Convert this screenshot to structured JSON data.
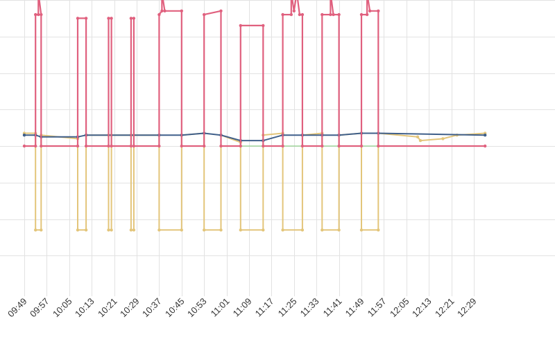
{
  "chart_data": {
    "type": "line",
    "title": "",
    "xlabel": "",
    "ylabel": "",
    "grid": true,
    "x_tick_labels": [
      "09:49",
      "09:57",
      "10:05",
      "10:13",
      "10:21",
      "10:29",
      "10:37",
      "10:45",
      "10:53",
      "11:01",
      "11:09",
      "11:17",
      "11:25",
      "11:33",
      "11:41",
      "11:49",
      "11:57",
      "12:05",
      "12:13",
      "12:21",
      "12:29"
    ],
    "ylim": [
      -4,
      4
    ],
    "x_start": "09:49",
    "x_end": "12:33",
    "colors": {
      "pink": "#e0607e",
      "gold": "#e3c57a",
      "navy": "#3f5f8a",
      "green": "#8fcf8a"
    },
    "series": [
      {
        "color": "pink",
        "values": [
          [
            "09:49",
            0
          ],
          [
            "09:53",
            0
          ],
          [
            "09:53",
            3.6
          ],
          [
            "09:54",
            3.6
          ],
          [
            "09:54",
            4.2
          ],
          [
            "09:55",
            3.6
          ],
          [
            "09:55",
            0
          ],
          [
            "10:08",
            0
          ],
          [
            "10:08",
            3.5
          ],
          [
            "10:11",
            3.5
          ],
          [
            "10:11",
            0
          ],
          [
            "10:19",
            0
          ],
          [
            "10:19",
            3.5
          ],
          [
            "10:20",
            3.5
          ],
          [
            "10:20",
            0
          ],
          [
            "10:27",
            0
          ],
          [
            "10:27",
            3.5
          ],
          [
            "10:28",
            3.5
          ],
          [
            "10:28",
            0
          ],
          [
            "10:37",
            0
          ],
          [
            "10:37",
            3.6
          ],
          [
            "10:38",
            3.7
          ],
          [
            "10:38",
            4.2
          ],
          [
            "10:39",
            3.7
          ],
          [
            "10:45",
            3.7
          ],
          [
            "10:45",
            0
          ],
          [
            "10:53",
            0
          ],
          [
            "10:53",
            3.6
          ],
          [
            "10:59",
            3.7
          ],
          [
            "10:59",
            0
          ],
          [
            "11:06",
            0
          ],
          [
            "11:06",
            3.3
          ],
          [
            "11:14",
            3.3
          ],
          [
            "11:14",
            0
          ],
          [
            "11:21",
            0
          ],
          [
            "11:21",
            3.6
          ],
          [
            "11:24",
            3.6
          ],
          [
            "11:24",
            4.2
          ],
          [
            "11:25",
            3.7
          ],
          [
            "11:26",
            4.2
          ],
          [
            "11:27",
            3.6
          ],
          [
            "11:28",
            3.6
          ],
          [
            "11:28",
            0
          ],
          [
            "11:35",
            0
          ],
          [
            "11:35",
            3.6
          ],
          [
            "11:38",
            3.6
          ],
          [
            "11:38",
            4.2
          ],
          [
            "11:39",
            3.6
          ],
          [
            "11:41",
            3.6
          ],
          [
            "11:41",
            0
          ],
          [
            "11:49",
            0
          ],
          [
            "11:49",
            3.6
          ],
          [
            "11:51",
            3.6
          ],
          [
            "11:51",
            4.2
          ],
          [
            "11:52",
            3.7
          ],
          [
            "11:55",
            3.7
          ],
          [
            "11:55",
            0
          ],
          [
            "12:33",
            0
          ]
        ]
      },
      {
        "color": "gold",
        "values": [
          [
            "09:49",
            0.35
          ],
          [
            "09:53",
            0.35
          ],
          [
            "09:53",
            -2.3
          ],
          [
            "09:55",
            -2.3
          ],
          [
            "09:55",
            0.3
          ],
          [
            "10:08",
            0.2
          ],
          [
            "10:08",
            -2.3
          ],
          [
            "10:11",
            -2.3
          ],
          [
            "10:11",
            0.3
          ],
          [
            "10:19",
            0.3
          ],
          [
            "10:19",
            -2.3
          ],
          [
            "10:20",
            -2.3
          ],
          [
            "10:20",
            0.3
          ],
          [
            "10:27",
            0.3
          ],
          [
            "10:27",
            -2.3
          ],
          [
            "10:28",
            -2.3
          ],
          [
            "10:28",
            0.3
          ],
          [
            "10:37",
            0.3
          ],
          [
            "10:37",
            -2.3
          ],
          [
            "10:45",
            -2.3
          ],
          [
            "10:45",
            0.3
          ],
          [
            "10:53",
            0.35
          ],
          [
            "10:53",
            -2.3
          ],
          [
            "10:59",
            -2.3
          ],
          [
            "10:59",
            0.3
          ],
          [
            "11:06",
            0.1
          ],
          [
            "11:06",
            -2.3
          ],
          [
            "11:14",
            -2.3
          ],
          [
            "11:14",
            0.3
          ],
          [
            "11:21",
            0.35
          ],
          [
            "11:21",
            -2.3
          ],
          [
            "11:28",
            -2.3
          ],
          [
            "11:28",
            0.3
          ],
          [
            "11:35",
            0.35
          ],
          [
            "11:35",
            -2.3
          ],
          [
            "11:41",
            -2.3
          ],
          [
            "11:41",
            0.3
          ],
          [
            "11:49",
            0.35
          ],
          [
            "11:49",
            -2.3
          ],
          [
            "11:55",
            -2.3
          ],
          [
            "11:55",
            0.35
          ],
          [
            "12:09",
            0.25
          ],
          [
            "12:10",
            0.15
          ],
          [
            "12:18",
            0.2
          ],
          [
            "12:23",
            0.3
          ],
          [
            "12:33",
            0.35
          ]
        ]
      },
      {
        "color": "navy",
        "values": [
          [
            "09:49",
            0.3
          ],
          [
            "09:53",
            0.3
          ],
          [
            "09:55",
            0.25
          ],
          [
            "10:08",
            0.25
          ],
          [
            "10:11",
            0.3
          ],
          [
            "10:37",
            0.3
          ],
          [
            "10:45",
            0.3
          ],
          [
            "10:53",
            0.35
          ],
          [
            "10:59",
            0.3
          ],
          [
            "11:06",
            0.15
          ],
          [
            "11:14",
            0.15
          ],
          [
            "11:21",
            0.3
          ],
          [
            "11:28",
            0.3
          ],
          [
            "11:35",
            0.3
          ],
          [
            "11:41",
            0.3
          ],
          [
            "11:49",
            0.35
          ],
          [
            "11:55",
            0.35
          ],
          [
            "12:33",
            0.3
          ]
        ]
      },
      {
        "color": "green",
        "values": [
          [
            "11:06",
            0
          ],
          [
            "11:55",
            0
          ]
        ]
      }
    ]
  }
}
